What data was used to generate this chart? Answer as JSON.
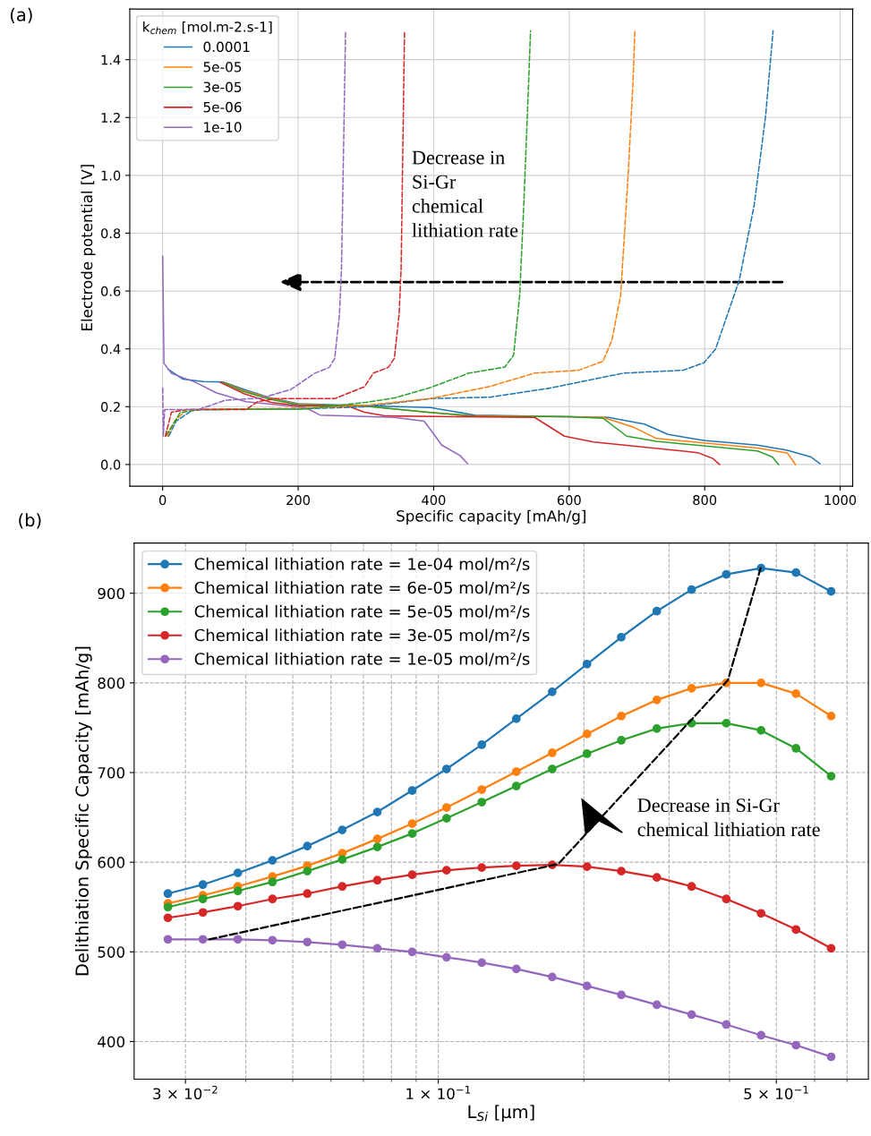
{
  "chart_data": [
    {
      "type": "line",
      "xlabel": "Specific capacity [mAh/g]",
      "ylabel": "Electrode potential [V]",
      "legend_title": "k$_{chem}$ [mol.m-2.s-1]",
      "legend": "top left",
      "grid": true,
      "marker": "none",
      "xlim": [
        -48.5,
        1018.5
      ],
      "ylim": [
        -0.075,
        1.575
      ],
      "xticks": [
        0,
        200,
        400,
        600,
        800,
        1000
      ],
      "yticks": [
        {
          "value": 0,
          "label": "0.0"
        },
        0.2,
        0.4,
        0.6,
        0.8,
        {
          "value": 1,
          "label": "1.0"
        },
        1.2,
        1.4
      ],
      "annotations": [
        "(a)",
        "Decrease in\nSi-Gr\nchemical\nlithiation rate"
      ],
      "series": [
        {
          "name": "0.0001",
          "color": "#1f77b4",
          "line_style": "solid",
          "x": [
            8,
            30,
            60,
            90,
            120,
            160,
            200,
            300,
            395,
            461,
            600,
            658,
            711,
            746,
            799,
            878,
            922,
            957,
            970
          ],
          "values": [
            0.33,
            0.295,
            0.287,
            0.285,
            0.26,
            0.23,
            0.21,
            0.203,
            0.197,
            0.171,
            0.165,
            0.163,
            0.14,
            0.104,
            0.083,
            0.067,
            0.049,
            0.026,
            0.003
          ]
        },
        {
          "name": "5e-05",
          "color": "#ff7f0e",
          "line_style": "solid",
          "x": [
            90,
            120,
            160,
            200,
            300,
            395,
            461,
            600,
            650,
            694,
            729,
            878,
            922,
            934
          ],
          "values": [
            0.284,
            0.255,
            0.228,
            0.208,
            0.202,
            0.18,
            0.168,
            0.165,
            0.163,
            0.13,
            0.09,
            0.057,
            0.04,
            0.0
          ]
        },
        {
          "name": "3e-05",
          "color": "#2ca02c",
          "line_style": "solid",
          "x": [
            90,
            120,
            160,
            200,
            300,
            395,
            461,
            600,
            650,
            685,
            729,
            878,
            900,
            909
          ],
          "values": [
            0.283,
            0.252,
            0.225,
            0.206,
            0.202,
            0.18,
            0.167,
            0.165,
            0.16,
            0.098,
            0.08,
            0.047,
            0.026,
            0.0
          ]
        },
        {
          "name": "5e-06",
          "color": "#d62728",
          "line_style": "solid",
          "x": [
            85,
            120,
            160,
            200,
            276,
            298,
            330,
            549,
            593,
            636,
            790,
            812,
            822
          ],
          "values": [
            0.284,
            0.245,
            0.215,
            0.203,
            0.2,
            0.181,
            0.168,
            0.163,
            0.098,
            0.078,
            0.041,
            0.021,
            0.0
          ]
        },
        {
          "name": "1e-10",
          "color": "#9467bd",
          "line_style": "solid",
          "x": [
            0,
            2,
            13,
            48,
            79,
            123,
            167,
            211,
            232,
            254,
            342,
            386,
            399,
            412,
            439,
            450
          ],
          "values": [
            0.72,
            0.35,
            0.315,
            0.285,
            0.248,
            0.217,
            0.207,
            0.197,
            0.171,
            0.169,
            0.163,
            0.15,
            0.109,
            0.067,
            0.031,
            0.003
          ]
        },
        {
          "color": "#1f77b4",
          "line_style": "dashed",
          "x": [
            9,
            20,
            45,
            200,
            300,
            395,
            483,
            571,
            680,
            768,
            799,
            816,
            851,
            873,
            890,
            901
          ],
          "values": [
            0.098,
            0.15,
            0.19,
            0.192,
            0.2,
            0.228,
            0.233,
            0.264,
            0.316,
            0.326,
            0.352,
            0.399,
            0.637,
            0.896,
            1.207,
            1.5
          ]
        },
        {
          "color": "#ff7f0e",
          "line_style": "dashed",
          "x": [
            7,
            18,
            35,
            211,
            300,
            395,
            483,
            549,
            614,
            650,
            663,
            676,
            687,
            694,
            697
          ],
          "values": [
            0.098,
            0.15,
            0.19,
            0.195,
            0.205,
            0.228,
            0.27,
            0.316,
            0.326,
            0.357,
            0.43,
            0.585,
            1.0,
            1.31,
            1.5
          ]
        },
        {
          "color": "#2ca02c",
          "line_style": "dashed",
          "x": [
            5,
            26,
            57,
            211,
            300,
            342,
            395,
            452,
            505,
            518,
            527,
            533,
            540,
            543
          ],
          "values": [
            0.1,
            0.18,
            0.19,
            0.192,
            0.215,
            0.23,
            0.266,
            0.316,
            0.337,
            0.378,
            0.585,
            0.896,
            1.31,
            1.5
          ]
        },
        {
          "color": "#d62728",
          "line_style": "dashed",
          "x": [
            4,
            13,
            35,
            123,
            140,
            167,
            254,
            298,
            311,
            333,
            342,
            349,
            352,
            357
          ],
          "values": [
            0.098,
            0.181,
            0.19,
            0.19,
            0.217,
            0.228,
            0.228,
            0.269,
            0.316,
            0.336,
            0.367,
            0.52,
            0.678,
            1.5
          ]
        },
        {
          "color": "#9467bd",
          "line_style": "dashed",
          "x": [
            0,
            1,
            3,
            53,
            92,
            145,
            189,
            224,
            246,
            254,
            261,
            264,
            270
          ],
          "values": [
            0.264,
            0.098,
            0.19,
            0.19,
            0.222,
            0.23,
            0.259,
            0.315,
            0.336,
            0.367,
            0.52,
            0.678,
            1.5
          ]
        }
      ]
    },
    {
      "type": "line",
      "xlabel": "L$_{Si}$ [μm]",
      "ylabel": "Delithiation Specific Capacity [mAh/g]",
      "legend": "top left",
      "grid": true,
      "log": "x",
      "marker": "circle",
      "xlim": [
        0.0235,
        0.775
      ],
      "ylim": [
        358,
        956
      ],
      "xticks": [
        {
          "value": 0.03,
          "label": "3 × 10$^{−2}$"
        },
        {
          "value": 0.04,
          "label": null
        },
        {
          "value": 0.05,
          "label": null
        },
        {
          "value": 0.06,
          "label": null
        },
        {
          "value": 0.07,
          "label": null
        },
        {
          "value": 0.08,
          "label": null
        },
        {
          "value": 0.09,
          "label": null
        },
        {
          "value": 0.1,
          "label": "1 × 10$^{−1}$"
        },
        {
          "value": 0.2,
          "label": null
        },
        {
          "value": 0.3,
          "label": null
        },
        {
          "value": 0.4,
          "label": null
        },
        {
          "value": 0.5,
          "label": "5 × 10$^{−1}$"
        },
        {
          "value": 0.6,
          "label": null
        },
        {
          "value": 0.7,
          "label": null
        }
      ],
      "yticks": [
        400,
        500,
        600,
        700,
        800,
        900
      ],
      "x": [
        0.0276,
        0.0326,
        0.0385,
        0.0454,
        0.0536,
        0.0633,
        0.0748,
        0.0883,
        0.104,
        0.123,
        0.145,
        0.172,
        0.203,
        0.239,
        0.283,
        0.334,
        0.394,
        0.465,
        0.549,
        0.649
      ],
      "annotations": [
        "(b)",
        "Decrease in Si-Gr\nchemical lithiation rate"
      ],
      "series": [
        {
          "name": "Chemical lithiation rate = 1e-04 mol/m²/s",
          "color": "#1f77b4",
          "values": [
            565,
            575,
            588,
            602,
            618,
            636,
            656,
            680,
            704,
            731,
            760,
            790,
            821,
            851,
            880,
            904,
            921,
            928,
            923,
            902
          ]
        },
        {
          "name": "Chemical lithiation rate = 6e-05 mol/m²/s",
          "color": "#ff7f0e",
          "values": [
            554,
            563,
            573,
            584,
            596,
            610,
            626,
            643,
            661,
            681,
            701,
            722,
            743,
            763,
            781,
            794,
            800,
            800,
            788,
            763
          ]
        },
        {
          "name": "Chemical lithiation rate = 5e-05 mol/m²/s",
          "color": "#2ca02c",
          "values": [
            550,
            559,
            568,
            578,
            590,
            603,
            617,
            632,
            649,
            667,
            685,
            704,
            721,
            736,
            749,
            755,
            755,
            747,
            727,
            696
          ]
        },
        {
          "name": "Chemical lithiation rate = 3e-05 mol/m²/s",
          "color": "#d62728",
          "values": [
            538,
            544,
            551,
            559,
            565,
            573,
            580,
            586,
            591,
            594,
            596,
            597,
            595,
            590,
            583,
            573,
            559,
            543,
            525,
            504
          ]
        },
        {
          "name": "Chemical lithiation rate = 1e-05 mol/m²/s",
          "color": "#9467bd",
          "values": [
            514,
            514,
            514,
            513,
            511,
            508,
            504,
            500,
            494,
            488,
            481,
            472,
            462,
            452,
            441,
            430,
            419,
            407,
            396,
            383
          ]
        },
        {
          "type": "line",
          "color": "#000000",
          "line_style": "dashed",
          "marker": "none",
          "x": [
            0.0336,
            0.177,
            0.397,
            0.464
          ],
          "values": [
            514,
            598,
            803,
            928
          ]
        }
      ]
    }
  ]
}
